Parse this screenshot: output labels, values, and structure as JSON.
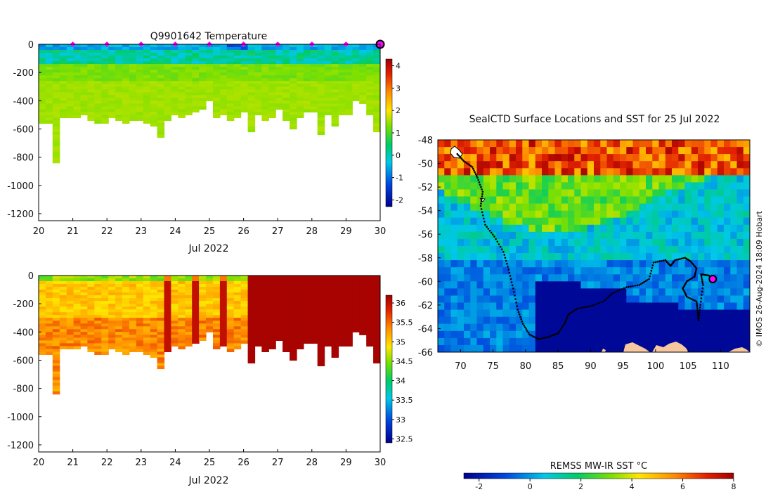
{
  "chart_data": [
    {
      "type": "heatmap",
      "title": "Q9901642  Temperature",
      "xlabel": "Jul 2022",
      "ylabel": "",
      "x_ticks": [
        20,
        21,
        22,
        23,
        24,
        25,
        26,
        27,
        28,
        29,
        30
      ],
      "y_ticks": [
        0,
        -200,
        -400,
        -600,
        -800,
        -1000,
        -1200
      ],
      "xlim": [
        20,
        30
      ],
      "ylim": [
        -1250,
        0
      ],
      "colorbar": {
        "ticks": [
          -2,
          -1,
          0,
          1,
          2,
          3,
          4
        ],
        "range": [
          -2.3,
          4.3
        ]
      },
      "profile_markers_day": [
        21,
        22,
        23,
        24,
        25,
        26,
        27,
        28,
        29
      ],
      "current_marker_day": 30,
      "profile_bottom_depths": [
        -560,
        -550,
        -830,
        -520,
        -510,
        -510,
        -500,
        -540,
        -560,
        -560,
        -520,
        -530,
        -560,
        -530,
        -540,
        -560,
        -580,
        -660,
        -540,
        -500,
        -520,
        -490,
        -480,
        -460,
        -400,
        -520,
        -500,
        -540,
        -520,
        -470,
        -620,
        -500,
        -540,
        -520,
        -460,
        -540,
        -600,
        -510,
        -480,
        -470,
        -640,
        -500,
        -580,
        -500,
        -500,
        -400,
        -420,
        -500,
        -610
      ]
    },
    {
      "type": "heatmap",
      "title": "",
      "xlabel": "Jul 2022",
      "ylabel": "",
      "x_ticks": [
        20,
        21,
        22,
        23,
        24,
        25,
        26,
        27,
        28,
        29,
        30
      ],
      "y_ticks": [
        0,
        -200,
        -400,
        -600,
        -800,
        -1000,
        -1200
      ],
      "xlim": [
        20,
        30
      ],
      "ylim": [
        -1250,
        0
      ],
      "colorbar": {
        "ticks": [
          32.5,
          33,
          33.5,
          34,
          34.5,
          35,
          35.5,
          36
        ],
        "range": [
          32.4,
          36.2
        ]
      },
      "profile_bottom_depths": [
        -560,
        -550,
        -830,
        -520,
        -510,
        -510,
        -500,
        -540,
        -560,
        -560,
        -520,
        -530,
        -560,
        -530,
        -540,
        -560,
        -580,
        -660,
        -540,
        -500,
        -520,
        -490,
        -480,
        -460,
        -400,
        -520,
        -500,
        -540,
        -520,
        -470,
        -620,
        -500,
        -540,
        -520,
        -460,
        -540,
        -600,
        -510,
        -480,
        -470,
        -640,
        -500,
        -580,
        -500,
        -500,
        -400,
        -420,
        -500,
        -610
      ]
    },
    {
      "type": "heatmap",
      "title": "SealCTD Surface Locations and SST for 25 Jul 2022",
      "xlabel": "",
      "ylabel": "",
      "x_ticks": [
        70,
        75,
        80,
        85,
        90,
        95,
        100,
        105,
        110
      ],
      "y_ticks": [
        -48,
        -50,
        -52,
        -54,
        -56,
        -58,
        -60,
        -62,
        -64,
        -66
      ],
      "xlim": [
        66.5,
        114.5
      ],
      "ylim": [
        -66,
        -48
      ],
      "colorbar": {
        "label": "REMSS MW-IR SST °C",
        "ticks": [
          -2,
          0,
          2,
          4,
          6,
          8
        ],
        "range": [
          -2.6,
          8
        ]
      },
      "track": [
        [
          69.5,
          -49.2
        ],
        [
          70.5,
          -49.8
        ],
        [
          71.8,
          -50.3
        ],
        [
          72.6,
          -51.2
        ],
        [
          73.4,
          -52.4
        ],
        [
          73.1,
          -53.6
        ],
        [
          73.8,
          -55.2
        ],
        [
          75.2,
          -56.2
        ],
        [
          76.6,
          -57.5
        ],
        [
          77.4,
          -59.0
        ],
        [
          78.1,
          -60.6
        ],
        [
          78.8,
          -62.4
        ],
        [
          79.6,
          -63.6
        ],
        [
          80.6,
          -64.5
        ],
        [
          82.0,
          -64.9
        ],
        [
          83.6,
          -64.7
        ],
        [
          85.0,
          -64.4
        ],
        [
          86.0,
          -63.6
        ],
        [
          86.6,
          -62.8
        ],
        [
          88.0,
          -62.3
        ],
        [
          90.0,
          -62.1
        ],
        [
          92.0,
          -61.7
        ],
        [
          93.4,
          -61.0
        ],
        [
          95.5,
          -60.5
        ],
        [
          97.5,
          -60.3
        ],
        [
          99.0,
          -59.8
        ],
        [
          99.7,
          -58.4
        ],
        [
          101.5,
          -58.2
        ],
        [
          102.3,
          -58.7
        ],
        [
          103.0,
          -58.2
        ],
        [
          104.5,
          -58.0
        ],
        [
          105.4,
          -58.3
        ],
        [
          106.3,
          -58.9
        ],
        [
          106.0,
          -59.6
        ],
        [
          104.8,
          -60.0
        ],
        [
          104.2,
          -60.6
        ],
        [
          104.8,
          -61.3
        ],
        [
          106.3,
          -61.7
        ],
        [
          106.5,
          -62.6
        ],
        [
          106.6,
          -63.3
        ],
        [
          106.9,
          -62.0
        ],
        [
          107.3,
          -60.3
        ],
        [
          107.0,
          -59.4
        ],
        [
          108.2,
          -59.5
        ],
        [
          108.8,
          -59.8
        ]
      ],
      "current_location": [
        108.8,
        -59.8
      ],
      "credit": "© IMOS 26-Aug-2024 18:09 Hobart"
    }
  ]
}
